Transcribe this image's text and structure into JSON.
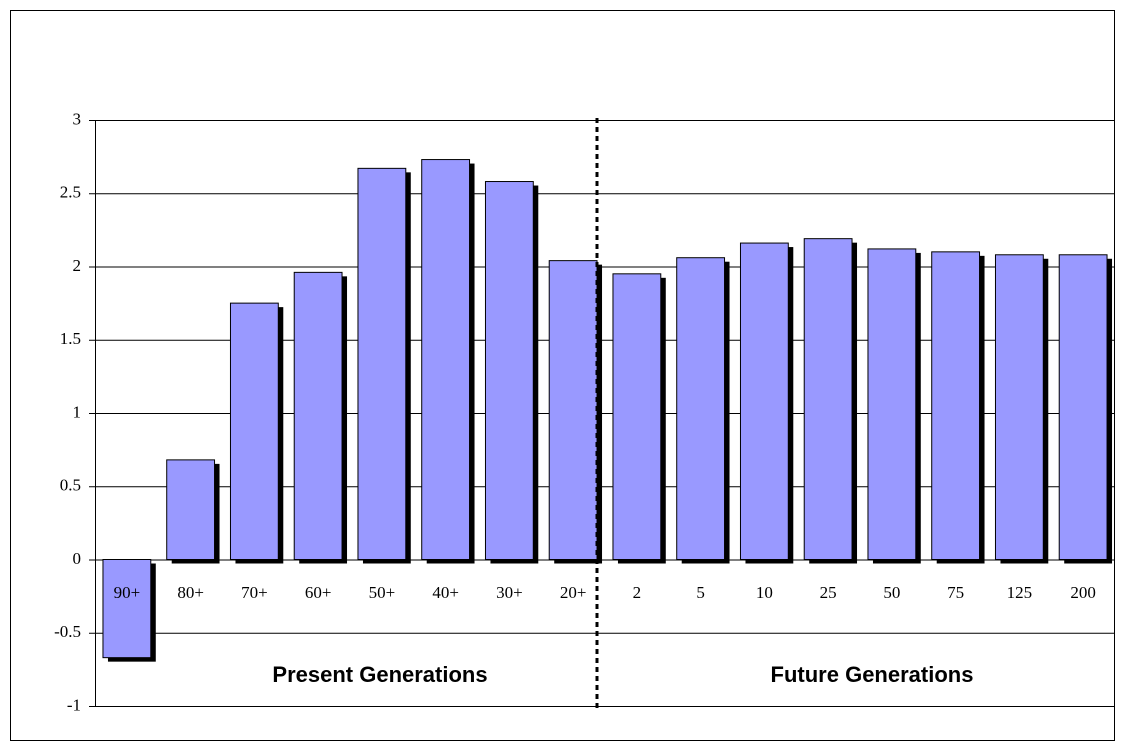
{
  "chart_data": {
    "type": "bar",
    "categories": [
      "90+",
      "80+",
      "70+",
      "60+",
      "50+",
      "40+",
      "30+",
      "20+",
      "2",
      "5",
      "10",
      "25",
      "50",
      "75",
      "125",
      "200"
    ],
    "values": [
      -0.67,
      0.68,
      1.75,
      1.96,
      2.67,
      2.73,
      2.58,
      2.04,
      1.95,
      2.06,
      2.16,
      2.19,
      2.12,
      2.1,
      2.08,
      2.08
    ],
    "color": "#9999ff",
    "ylim": [
      -1,
      3
    ],
    "yticks": [
      -1,
      -0.5,
      0,
      0.5,
      1,
      1.5,
      2,
      2.5,
      3
    ],
    "grid": true,
    "annotations": [
      "Present Generations",
      "Future Generations"
    ]
  }
}
